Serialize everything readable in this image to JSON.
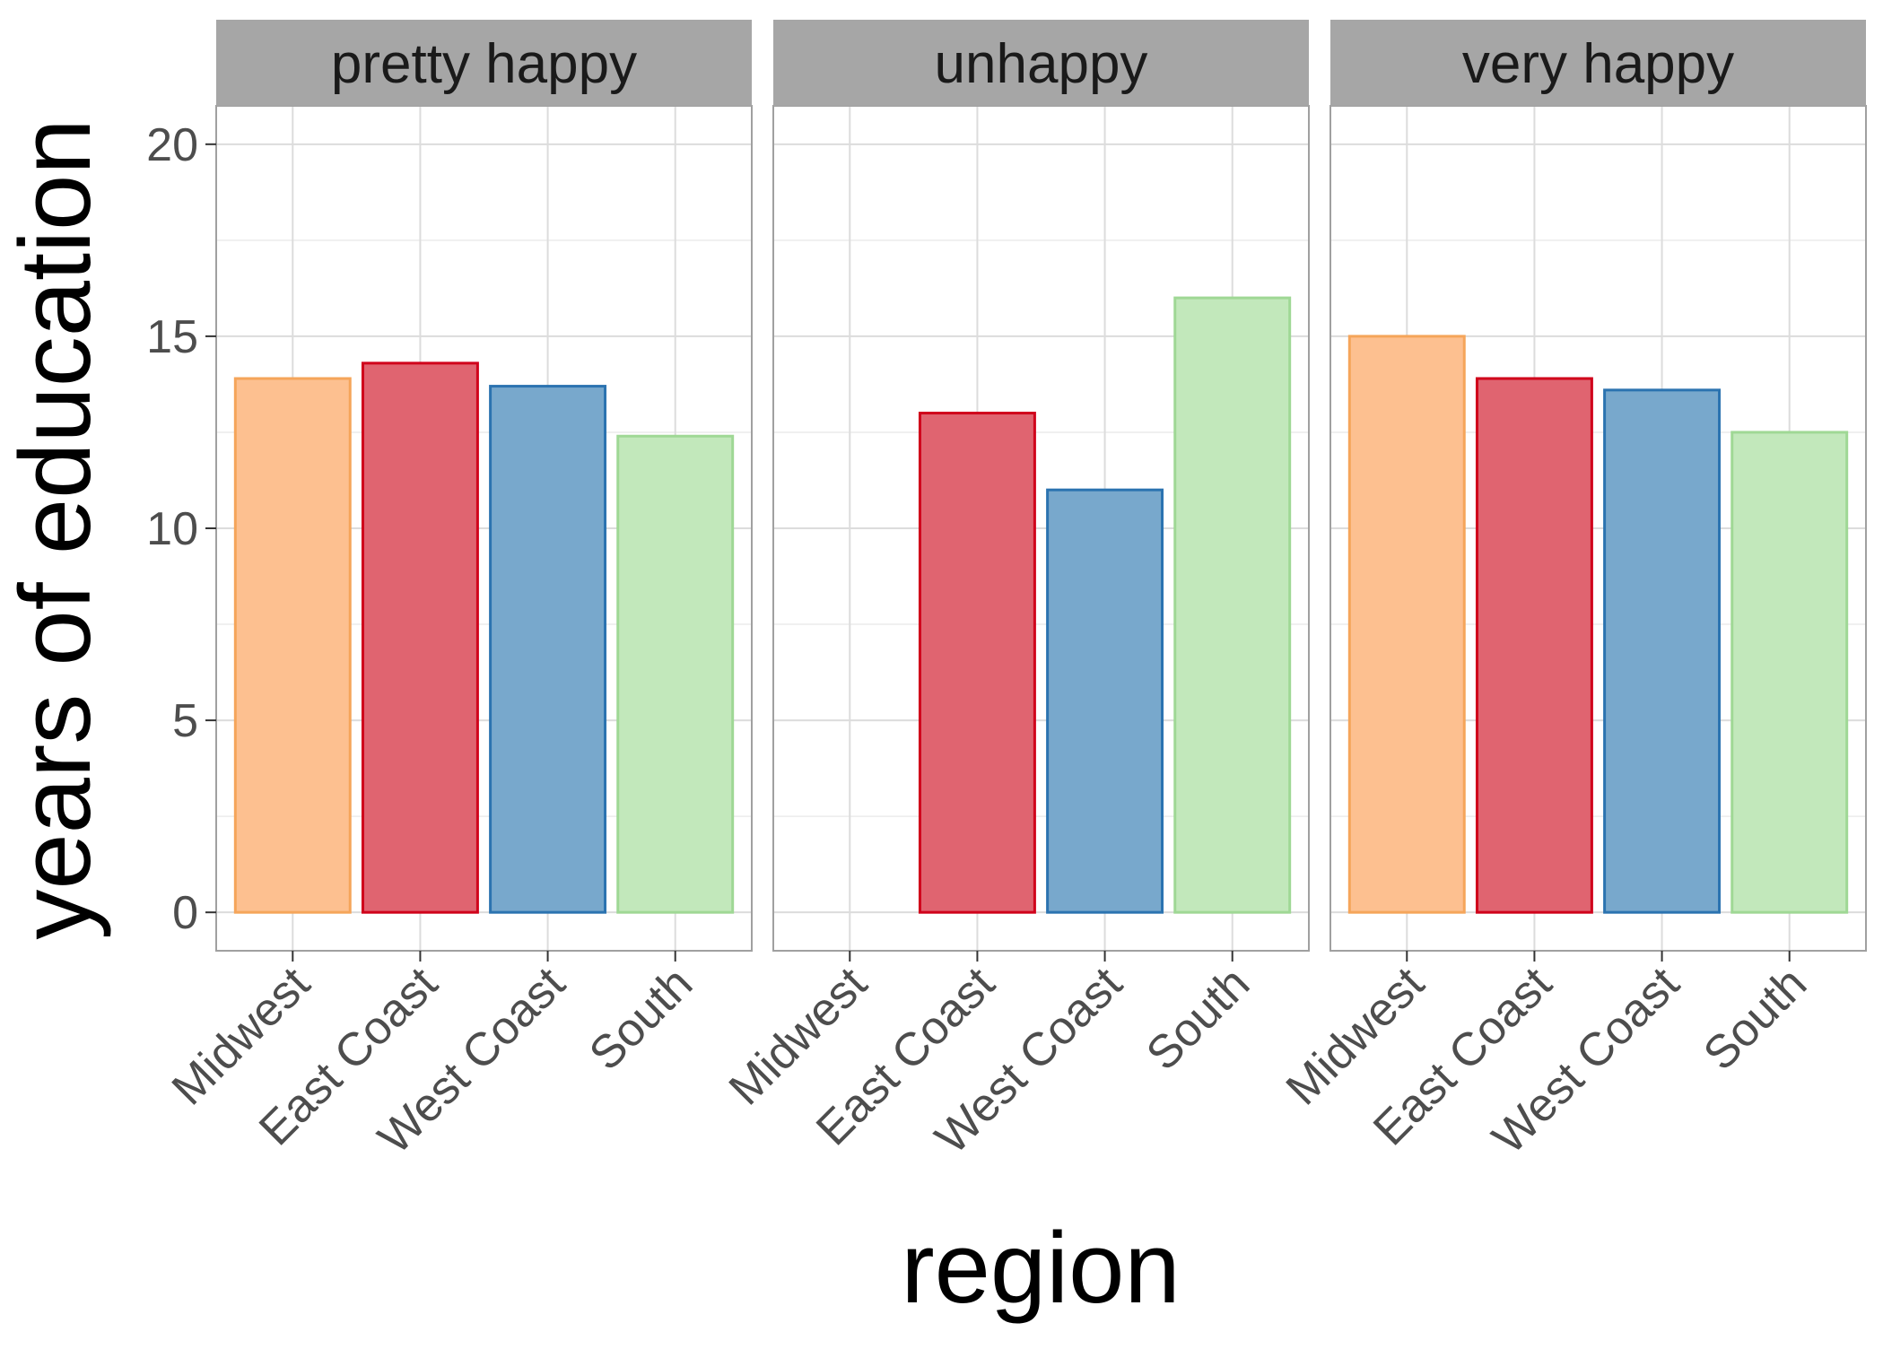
{
  "chart_data": {
    "type": "bar",
    "facet_by": "happiness",
    "facets": [
      "pretty happy",
      "unhappy",
      "very happy"
    ],
    "categories": [
      "Midwest",
      "East Coast",
      "West Coast",
      "South"
    ],
    "series": [
      {
        "facet": "pretty happy",
        "values": [
          13.9,
          14.3,
          13.7,
          12.4
        ]
      },
      {
        "facet": "unhappy",
        "values": [
          null,
          13.0,
          11.0,
          16.0
        ]
      },
      {
        "facet": "very happy",
        "values": [
          15.0,
          13.9,
          13.6,
          12.5
        ]
      }
    ],
    "xlabel": "region",
    "ylabel": "years of education",
    "ylim": [
      -1,
      21
    ],
    "yticks": [
      0,
      5,
      10,
      15,
      20
    ],
    "ytick_labels": [
      "0",
      "5",
      "10",
      "15",
      "20"
    ],
    "grid": true,
    "legend": "none",
    "colors": {
      "Midwest": {
        "fill": "#fdc090",
        "stroke": "#f5a55a"
      },
      "East Coast": {
        "fill": "#e06470",
        "stroke": "#d0021b"
      },
      "West Coast": {
        "fill": "#78a8cc",
        "stroke": "#2b73b0"
      },
      "South": {
        "fill": "#c2e8bb",
        "stroke": "#9fd895"
      },
      "strip_background": "#a6a6a6",
      "panel_border": "#a0a0a0",
      "grid_major": "#dcdcdc",
      "grid_minor": "#ececec"
    }
  }
}
